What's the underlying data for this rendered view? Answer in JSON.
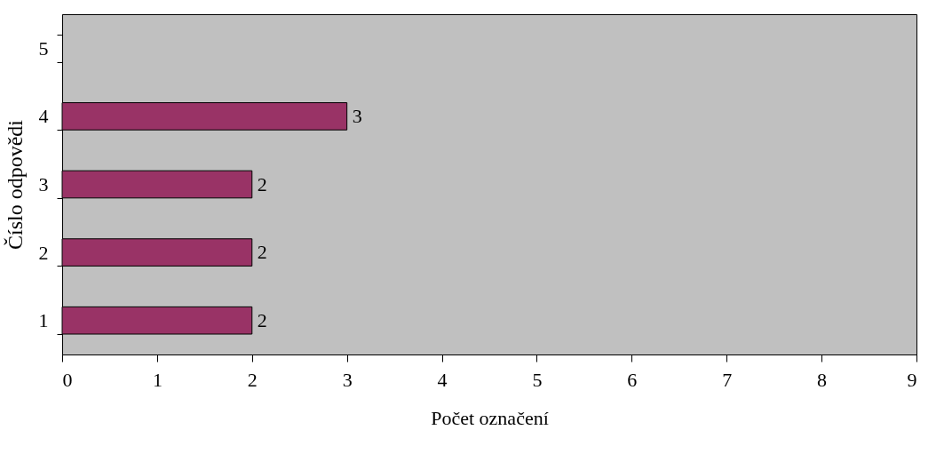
{
  "chart_data": {
    "type": "bar",
    "orientation": "horizontal",
    "xlabel": "Počet označení",
    "ylabel": "Číslo odpovědi",
    "categories": [
      "5",
      "4",
      "3",
      "2",
      "1"
    ],
    "series": [
      {
        "color": "#993366",
        "values": [
          null,
          3,
          2,
          2,
          2
        ]
      }
    ],
    "xlim": [
      0,
      9
    ],
    "xticks": [
      0,
      1,
      2,
      3,
      4,
      5,
      6,
      7,
      8,
      9
    ],
    "data_labels": true,
    "grid": false
  }
}
